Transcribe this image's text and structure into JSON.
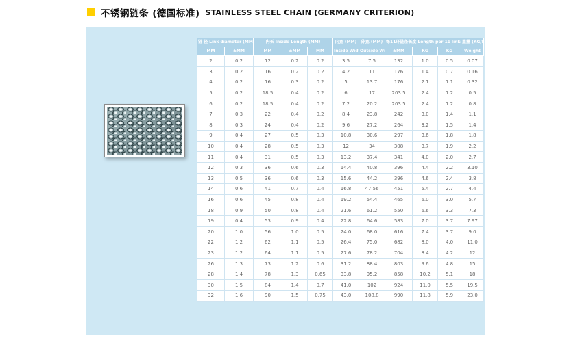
{
  "title": {
    "zh": "不锈钢链条 (德国标准)",
    "en": "STAINLESS STEEL CHAIN (GERMANY CRITERION)"
  },
  "colors": {
    "accent_yellow": "#ffcf00",
    "panel_blue": "#cfe8f4",
    "header_blue": "#aed3e8",
    "grid_blue": "#cfe4f1"
  },
  "photo": {
    "alt": "stainless-steel-chain-photo"
  },
  "table": {
    "header_groups": [
      {
        "label": "链 径 Link diameter (MM)",
        "span": 2
      },
      {
        "label": "内长 Inside Length (MM)",
        "span": 3
      },
      {
        "label": "内宽 (MM)",
        "span": 1
      },
      {
        "label": "外宽 (MM)",
        "span": 1
      },
      {
        "label": "每11环链条长度 Length per 11 links",
        "span": 3
      },
      {
        "label": "重量 (KG/M)",
        "span": 1
      }
    ],
    "subheaders": [
      "MM",
      "±MM",
      "MM",
      "±MM",
      "MM",
      "Inside Width",
      "Outside Width",
      "±MM",
      "KG",
      "KG",
      "Weight"
    ],
    "rows": [
      [
        "2",
        "0.2",
        "12",
        "0.2",
        "0.2",
        "3.5",
        "7.5",
        "132",
        "1.0",
        "0.5",
        "0.07"
      ],
      [
        "3",
        "0.2",
        "16",
        "0.2",
        "0.2",
        "4.2",
        "11",
        "176",
        "1.4",
        "0.7",
        "0.16"
      ],
      [
        "4",
        "0.2",
        "16",
        "0.3",
        "0.2",
        "5",
        "13.7",
        "176",
        "2.1",
        "1.1",
        "0.32"
      ],
      [
        "5",
        "0.2",
        "18.5",
        "0.4",
        "0.2",
        "6",
        "17",
        "203.5",
        "2.4",
        "1.2",
        "0.5"
      ],
      [
        "6",
        "0.2",
        "18.5",
        "0.4",
        "0.2",
        "7.2",
        "20.2",
        "203.5",
        "2.4",
        "1.2",
        "0.8"
      ],
      [
        "7",
        "0.3",
        "22",
        "0.4",
        "0.2",
        "8.4",
        "23.8",
        "242",
        "3.0",
        "1.4",
        "1.1"
      ],
      [
        "8",
        "0.3",
        "24",
        "0.4",
        "0.2",
        "9.6",
        "27.2",
        "264",
        "3.2",
        "1.5",
        "1.4"
      ],
      [
        "9",
        "0.4",
        "27",
        "0.5",
        "0.3",
        "10.8",
        "30.6",
        "297",
        "3.6",
        "1.8",
        "1.8"
      ],
      [
        "10",
        "0.4",
        "28",
        "0.5",
        "0.3",
        "12",
        "34",
        "308",
        "3.7",
        "1.9",
        "2.2"
      ],
      [
        "11",
        "0.4",
        "31",
        "0.5",
        "0.3",
        "13.2",
        "37.4",
        "341",
        "4.0",
        "2.0",
        "2.7"
      ],
      [
        "12",
        "0.3",
        "36",
        "0.6",
        "0.3",
        "14.4",
        "40.8",
        "396",
        "4.4",
        "2.2",
        "3.10"
      ],
      [
        "13",
        "0.5",
        "36",
        "0.6",
        "0.3",
        "15.6",
        "44.2",
        "396",
        "4.6",
        "2.4",
        "3.8"
      ],
      [
        "14",
        "0.6",
        "41",
        "0.7",
        "0.4",
        "16.8",
        "47.56",
        "451",
        "5.4",
        "2.7",
        "4.4"
      ],
      [
        "16",
        "0.6",
        "45",
        "0.8",
        "0.4",
        "19.2",
        "54.4",
        "465",
        "6.0",
        "3.0",
        "5.7"
      ],
      [
        "18",
        "0.9",
        "50",
        "0.8",
        "0.4",
        "21.6",
        "61.2",
        "550",
        "6.6",
        "3.3",
        "7.3"
      ],
      [
        "19",
        "0.4",
        "53",
        "0.9",
        "0.4",
        "22.8",
        "64.6",
        "583",
        "7.0",
        "3.7",
        "7.97"
      ],
      [
        "20",
        "1.0",
        "56",
        "1.0",
        "0.5",
        "24.0",
        "68.0",
        "616",
        "7.4",
        "3.7",
        "9.0"
      ],
      [
        "22",
        "1.2",
        "62",
        "1.1",
        "0.5",
        "26.4",
        "75.0",
        "682",
        "8.0",
        "4.0",
        "11.0"
      ],
      [
        "23",
        "1.2",
        "64",
        "1.1",
        "0.5",
        "27.6",
        "78.2",
        "704",
        "8.4",
        "4.2",
        "12"
      ],
      [
        "26",
        "1.3",
        "73",
        "1.2",
        "0.6",
        "31.2",
        "88.4",
        "803",
        "9.6",
        "4.8",
        "15"
      ],
      [
        "28",
        "1.4",
        "78",
        "1.3",
        "0.65",
        "33.8",
        "95.2",
        "858",
        "10.2",
        "5.1",
        "18"
      ],
      [
        "30",
        "1.5",
        "84",
        "1.4",
        "0.7",
        "41.0",
        "102",
        "924",
        "11.0",
        "5.5",
        "19.5"
      ],
      [
        "32",
        "1.6",
        "90",
        "1.5",
        "0.75",
        "43.0",
        "108.8",
        "990",
        "11.8",
        "5.9",
        "23.0"
      ]
    ]
  }
}
